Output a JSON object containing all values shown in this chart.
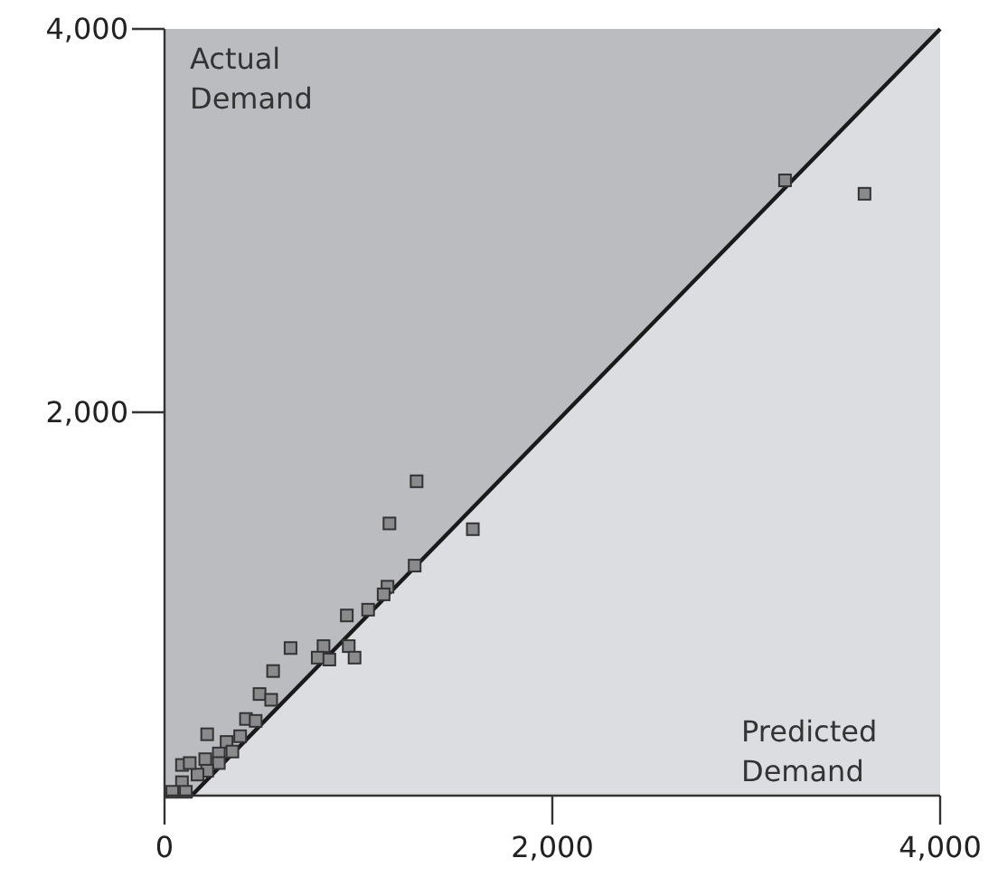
{
  "chart_data": {
    "type": "scatter",
    "xlabel": "Predicted Demand",
    "ylabel": "Actual Demand",
    "xlim": [
      0,
      4000
    ],
    "ylim": [
      0,
      4000
    ],
    "xticks": [
      {
        "value": 0,
        "label": "0"
      },
      {
        "value": 2000,
        "label": "2,000"
      },
      {
        "value": 4000,
        "label": "4,000"
      }
    ],
    "yticks": [
      {
        "value": 2000,
        "label": "2,000"
      },
      {
        "value": 4000,
        "label": "4,000"
      }
    ],
    "grid": false,
    "marker": "square",
    "series": [
      {
        "type": "area",
        "marker": "none",
        "color": "#dcdde0",
        "x": [
          140,
          4000
        ],
        "values": [
          0,
          4000
        ]
      },
      {
        "color": "#8a8a8c",
        "x": [
          3200,
          3610,
          1300,
          1160,
          1590,
          1290,
          1150,
          1130,
          1050,
          940,
          650,
          820,
          790,
          850,
          950,
          980,
          560,
          490,
          550,
          420,
          470,
          220,
          320,
          390,
          280,
          350,
          210,
          280,
          220,
          170,
          90,
          130,
          90,
          40,
          110
        ],
        "values": [
          3210,
          3140,
          1640,
          1420,
          1390,
          1200,
          1090,
          1050,
          970,
          940,
          770,
          780,
          720,
          710,
          780,
          720,
          650,
          530,
          500,
          400,
          390,
          320,
          280,
          310,
          220,
          230,
          190,
          170,
          130,
          110,
          160,
          170,
          70,
          20,
          20
        ]
      }
    ]
  }
}
